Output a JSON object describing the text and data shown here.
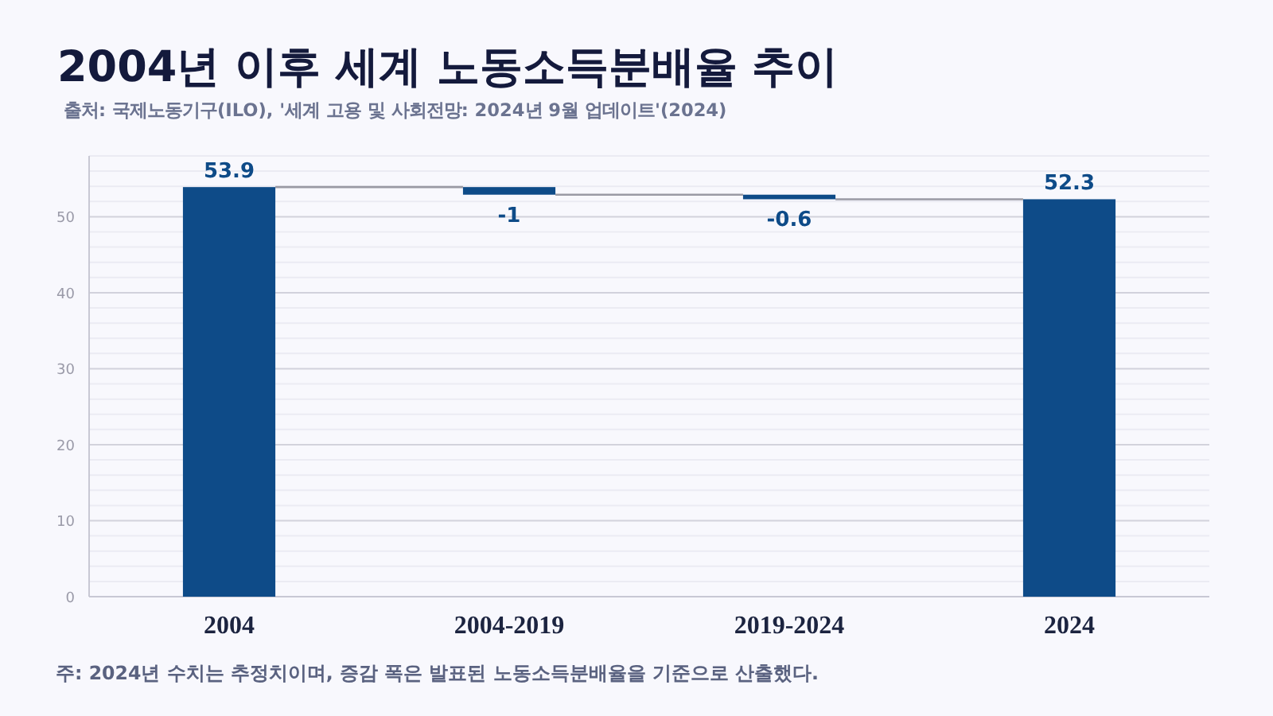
{
  "chart_data": {
    "type": "bar",
    "title": "2004년 이후 세계 노동소득분배율 추이",
    "annotations": [
      "출처: 국제노동기구(ILO), '세계 고용 및 사회전망: 2024년 9월 업데이트'(2024)",
      "주: 2024년 수치는 추정치이며, 증감 폭은 발표된 노동소득분배율을 기준으로 산출했다."
    ],
    "categories": [
      "2004",
      "2004-2019",
      "2019-2024",
      "2024"
    ],
    "values": [
      53.9,
      -1,
      -0.6,
      52.3
    ],
    "base": [
      0,
      53.9,
      52.9,
      0
    ],
    "color": "#0e4b88",
    "ylim": [
      0,
      58
    ],
    "yticks": [
      0,
      {
        "value": 2,
        "label": null
      },
      {
        "value": 4,
        "label": null
      },
      {
        "value": 6,
        "label": null
      },
      {
        "value": 8,
        "label": null
      },
      10,
      {
        "value": 12,
        "label": null
      },
      {
        "value": 14,
        "label": null
      },
      {
        "value": 16,
        "label": null
      },
      {
        "value": 18,
        "label": null
      },
      20,
      {
        "value": 22,
        "label": null
      },
      {
        "value": 24,
        "label": null
      },
      {
        "value": 26,
        "label": null
      },
      {
        "value": 28,
        "label": null
      },
      30,
      {
        "value": 32,
        "label": null
      },
      {
        "value": 34,
        "label": null
      },
      {
        "value": 36,
        "label": null
      },
      {
        "value": 38,
        "label": null
      },
      40,
      {
        "value": 42,
        "label": null
      },
      {
        "value": 44,
        "label": null
      },
      {
        "value": 46,
        "label": null
      },
      {
        "value": 48,
        "label": null
      },
      50,
      {
        "value": 52,
        "label": null
      },
      {
        "value": 54,
        "label": null
      },
      {
        "value": 56,
        "label": null
      },
      {
        "value": 58,
        "label": null
      }
    ],
    "grid": "y",
    "data_labels": true
  }
}
